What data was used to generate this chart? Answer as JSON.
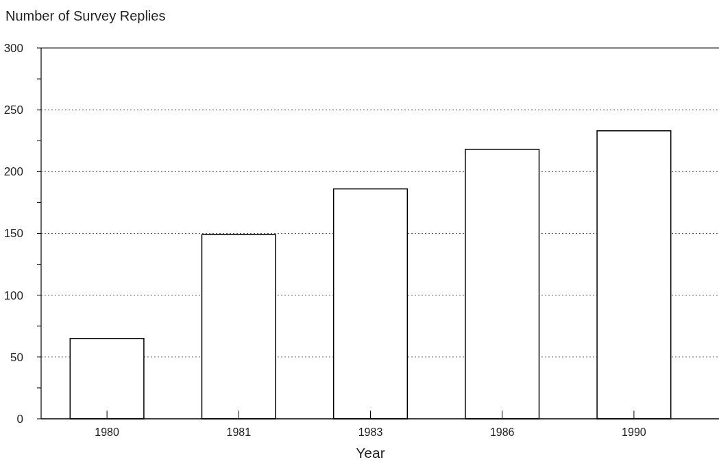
{
  "chart_data": {
    "type": "bar",
    "ylabel": "Number of Survey Replies",
    "xlabel": "Year",
    "categories": [
      "1980",
      "1981",
      "1983",
      "1986",
      "1990"
    ],
    "values": [
      65,
      149,
      186,
      218,
      233
    ],
    "color": "#ffffff",
    "ylim": [
      0,
      300
    ],
    "yticks": [
      0,
      {
        "value": 25,
        "label": null
      },
      50,
      {
        "value": 75,
        "label": null
      },
      100,
      {
        "value": 125,
        "label": null
      },
      150,
      {
        "value": 175,
        "label": null
      },
      200,
      {
        "value": 225,
        "label": null
      },
      250,
      {
        "value": 275,
        "label": null
      },
      300
    ],
    "grid": "y"
  }
}
